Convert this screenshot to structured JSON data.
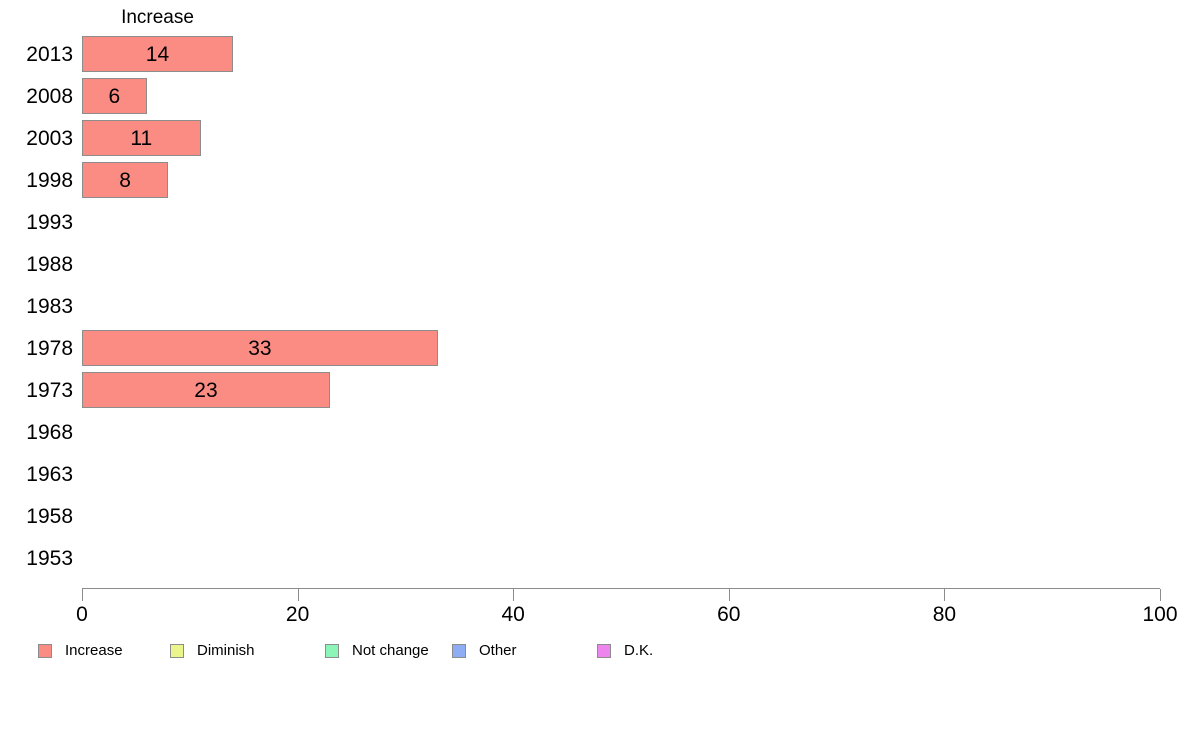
{
  "chart_data": {
    "type": "bar",
    "orientation": "horizontal",
    "title": "Increase",
    "categories": [
      "2013",
      "2008",
      "2003",
      "1998",
      "1993",
      "1988",
      "1983",
      "1978",
      "1973",
      "1968",
      "1963",
      "1958",
      "1953"
    ],
    "series": [
      {
        "name": "Increase",
        "color": "#FB8C84",
        "values": [
          14,
          6,
          11,
          8,
          null,
          null,
          null,
          33,
          23,
          null,
          null,
          null,
          null
        ]
      }
    ],
    "xlabel": "",
    "ylabel": "",
    "xlim": [
      0,
      100
    ],
    "x_ticks": [
      0,
      20,
      40,
      60,
      80,
      100
    ],
    "grid": false,
    "bar_border_color": "#8C8C8C",
    "axis_color": "#8C8C8C",
    "legend_position": "bottom",
    "legend": [
      {
        "label": "Increase",
        "color": "#FB8C84"
      },
      {
        "label": "Diminish",
        "color": "#EBF58B"
      },
      {
        "label": "Not change",
        "color": "#8DF5B8"
      },
      {
        "label": "Other",
        "color": "#8FADF5"
      },
      {
        "label": "D.K.",
        "color": "#EE85EE"
      }
    ]
  }
}
